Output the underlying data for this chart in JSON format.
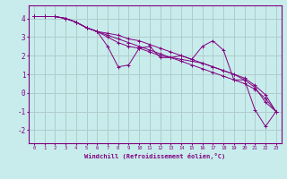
{
  "xlabel": "Windchill (Refroidissement éolien,°C)",
  "xlim": [
    -0.5,
    23.5
  ],
  "ylim": [
    -2.7,
    4.7
  ],
  "yticks": [
    -2,
    -1,
    0,
    1,
    2,
    3,
    4
  ],
  "xticks": [
    0,
    1,
    2,
    3,
    4,
    5,
    6,
    7,
    8,
    9,
    10,
    11,
    12,
    13,
    14,
    15,
    16,
    17,
    18,
    19,
    20,
    21,
    22,
    23
  ],
  "background_color": "#c8ecec",
  "line_color": "#800080",
  "grid_color": "#b0cccc",
  "series": [
    [
      4.1,
      4.1,
      4.1,
      4.0,
      3.8,
      3.5,
      3.3,
      2.5,
      1.4,
      1.5,
      2.4,
      2.5,
      1.9,
      1.9,
      2.0,
      1.8,
      2.5,
      2.8,
      2.3,
      0.7,
      0.7,
      -0.9,
      -1.8,
      -1.0
    ],
    [
      4.1,
      4.1,
      4.1,
      4.0,
      3.8,
      3.5,
      3.3,
      3.0,
      2.7,
      2.5,
      2.4,
      2.2,
      2.0,
      1.9,
      1.8,
      1.7,
      1.6,
      1.4,
      1.2,
      1.0,
      0.7,
      0.3,
      -0.5,
      -1.0
    ],
    [
      4.1,
      4.1,
      4.1,
      4.0,
      3.8,
      3.5,
      3.3,
      3.1,
      2.9,
      2.7,
      2.5,
      2.3,
      2.1,
      1.9,
      1.7,
      1.5,
      1.3,
      1.1,
      0.9,
      0.7,
      0.5,
      0.2,
      -0.3,
      -1.0
    ],
    [
      4.1,
      4.1,
      4.1,
      4.0,
      3.8,
      3.5,
      3.3,
      3.2,
      3.1,
      2.9,
      2.8,
      2.6,
      2.4,
      2.2,
      2.0,
      1.8,
      1.6,
      1.4,
      1.2,
      1.0,
      0.8,
      0.4,
      -0.1,
      -1.0
    ]
  ],
  "marker": "+"
}
